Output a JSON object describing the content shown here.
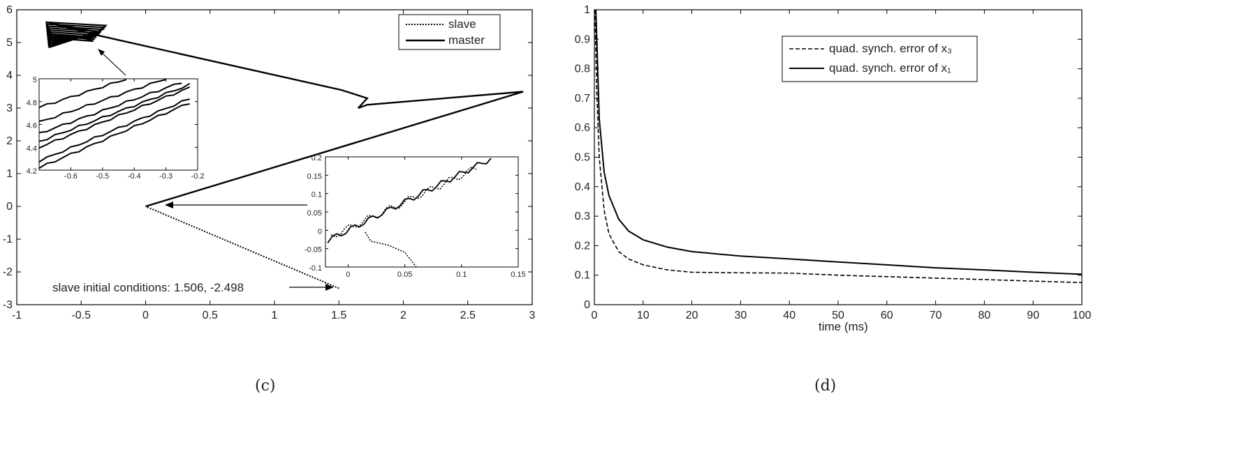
{
  "chart_data": [
    {
      "type": "line",
      "panel_label": "(c)",
      "xlim": [
        -1,
        3
      ],
      "ylim": [
        -3,
        6
      ],
      "x_ticks": [
        "-1",
        "-0.5",
        "0",
        "0.5",
        "1",
        "1.5",
        "2",
        "2.5",
        "3"
      ],
      "y_ticks": [
        "-3",
        "-2",
        "-1",
        "0",
        "1",
        "2",
        "3",
        "4",
        "5",
        "6"
      ],
      "legend": {
        "placement": "top-right",
        "entries": [
          "slave",
          "master"
        ]
      },
      "series": [
        {
          "name": "slave",
          "style": "dotted",
          "x": [
            1.5,
            0.0
          ],
          "y": [
            -2.5,
            0.0
          ]
        },
        {
          "name": "master",
          "style": "solid",
          "x": [
            0.0,
            2.93,
            1.72,
            1.65,
            1.72,
            1.52,
            -0.35,
            -0.75,
            -0.35
          ],
          "y": [
            0.0,
            3.5,
            3.1,
            3.0,
            3.3,
            3.55,
            5.2,
            5.6,
            5.3
          ]
        }
      ],
      "annotation": "slave initial conditions: 1.506, -2.498",
      "insets": [
        {
          "name": "attractor-zoom",
          "xlim": [
            -0.7,
            -0.2
          ],
          "ylim": [
            4.2,
            5.0
          ],
          "x_ticks": [
            "-0.6",
            "-0.5",
            "-0.4",
            "-0.3",
            "-0.2"
          ],
          "y_ticks": [
            "4.2",
            "4.4",
            "4.6",
            "4.8",
            "5"
          ]
        },
        {
          "name": "origin-zoom",
          "xlim": [
            -0.02,
            0.15
          ],
          "ylim": [
            -0.1,
            0.2
          ],
          "x_ticks": [
            "0",
            "0.05",
            "0.1",
            "0.15"
          ],
          "y_ticks": [
            "-0.1",
            "-0.05",
            "0",
            "0.05",
            "0.1",
            "0.15",
            "0.2"
          ]
        }
      ]
    },
    {
      "type": "line",
      "panel_label": "(d)",
      "xlabel": "time (ms)",
      "xlim": [
        0,
        100
      ],
      "ylim": [
        0,
        1
      ],
      "x_ticks": [
        "0",
        "10",
        "20",
        "30",
        "40",
        "50",
        "60",
        "70",
        "80",
        "90",
        "100"
      ],
      "y_ticks": [
        "0",
        "0.1",
        "0.2",
        "0.3",
        "0.4",
        "0.5",
        "0.6",
        "0.7",
        "0.8",
        "0.9",
        "1"
      ],
      "legend": {
        "placement": "top-center"
      },
      "series": [
        {
          "name": "quad. synch. error of x₃",
          "style": "dashed",
          "x": [
            0.1,
            0.5,
            1,
            2,
            3,
            5,
            7,
            10,
            15,
            20,
            30,
            40,
            50,
            60,
            70,
            80,
            90,
            100
          ],
          "y": [
            1.0,
            0.72,
            0.5,
            0.32,
            0.24,
            0.18,
            0.155,
            0.135,
            0.118,
            0.11,
            0.108,
            0.107,
            0.1,
            0.095,
            0.09,
            0.085,
            0.08,
            0.075
          ]
        },
        {
          "name": "quad. synch. error of x₁",
          "style": "solid",
          "x": [
            0.3,
            0.5,
            1,
            2,
            3,
            5,
            7,
            10,
            15,
            20,
            30,
            40,
            50,
            60,
            70,
            80,
            90,
            100
          ],
          "y": [
            1.0,
            0.9,
            0.63,
            0.45,
            0.37,
            0.29,
            0.25,
            0.22,
            0.195,
            0.18,
            0.165,
            0.155,
            0.145,
            0.135,
            0.125,
            0.118,
            0.11,
            0.103
          ]
        }
      ]
    }
  ]
}
